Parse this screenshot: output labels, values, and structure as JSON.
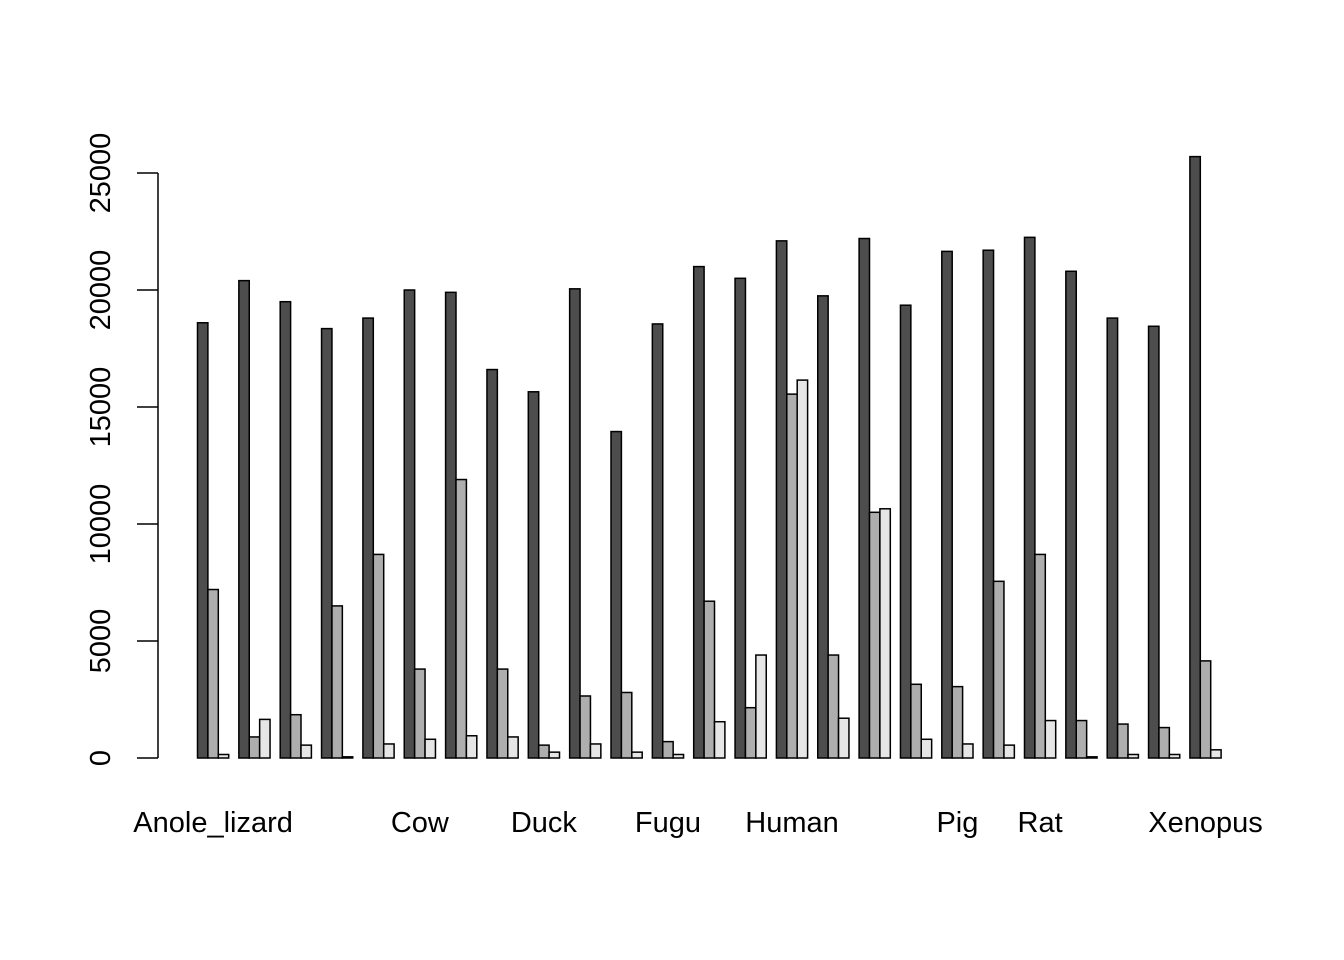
{
  "chart_data": {
    "type": "bar",
    "title": "",
    "xlabel": "",
    "ylabel": "",
    "ylim": [
      0,
      26000
    ],
    "y_ticks": [
      "0",
      "5000",
      "10000",
      "15000",
      "20000",
      "25000"
    ],
    "y_tick_values": [
      0,
      5000,
      10000,
      15000,
      20000,
      25000
    ],
    "grid": false,
    "legend": "none",
    "colors": [
      "#4d4d4d",
      "#aeaeae",
      "#e6e6e6"
    ],
    "groups": [
      {
        "label": "Anole_lizard",
        "values": [
          18600,
          7200,
          150
        ]
      },
      {
        "label": "",
        "values": [
          20400,
          900,
          1650
        ]
      },
      {
        "label": "",
        "values": [
          19500,
          1850,
          550
        ]
      },
      {
        "label": "",
        "values": [
          18350,
          6500,
          50
        ]
      },
      {
        "label": "",
        "values": [
          18800,
          8700,
          600
        ]
      },
      {
        "label": "Cow",
        "values": [
          20000,
          3800,
          800
        ]
      },
      {
        "label": "",
        "values": [
          19900,
          11900,
          950
        ]
      },
      {
        "label": "",
        "values": [
          16600,
          3800,
          900
        ]
      },
      {
        "label": "Duck",
        "values": [
          15650,
          550,
          250
        ]
      },
      {
        "label": "",
        "values": [
          20050,
          2650,
          600
        ]
      },
      {
        "label": "",
        "values": [
          13950,
          2800,
          250
        ]
      },
      {
        "label": "Fugu",
        "values": [
          18550,
          700,
          150
        ]
      },
      {
        "label": "",
        "values": [
          21000,
          6700,
          1550
        ]
      },
      {
        "label": "",
        "values": [
          20500,
          2150,
          4400
        ]
      },
      {
        "label": "Human",
        "values": [
          22100,
          15550,
          16150
        ]
      },
      {
        "label": "",
        "values": [
          19750,
          4400,
          1700
        ]
      },
      {
        "label": "",
        "values": [
          22200,
          10500,
          10650
        ]
      },
      {
        "label": "",
        "values": [
          19350,
          3150,
          800
        ]
      },
      {
        "label": "Pig",
        "values": [
          21650,
          3050,
          600
        ]
      },
      {
        "label": "",
        "values": [
          21700,
          7550,
          550
        ]
      },
      {
        "label": "Rat",
        "values": [
          22250,
          8700,
          1600
        ]
      },
      {
        "label": "",
        "values": [
          20800,
          1600,
          50
        ]
      },
      {
        "label": "",
        "values": [
          18800,
          1450,
          150
        ]
      },
      {
        "label": "",
        "values": [
          18450,
          1300,
          150
        ]
      },
      {
        "label": "Xenopus",
        "values": [
          25700,
          4150,
          350
        ]
      }
    ]
  }
}
